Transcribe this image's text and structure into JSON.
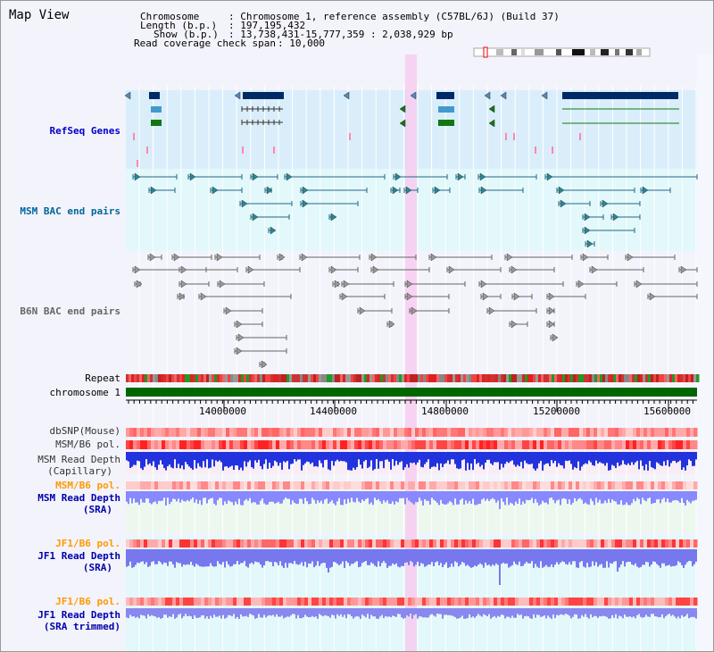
{
  "title": "Map View",
  "header": {
    "chromosome_key": "Chromosome",
    "chromosome_val": ": Chromosome 1, reference assembly (C57BL/6J) (Build 37)",
    "length_key": "Length (b.p.)",
    "length_val": ": 197,195,432",
    "show_key": "Show (b.p.)",
    "show_val": ": 13,738,431-15,777,359 : 2,038,929 bp",
    "coverage_key": "Read coverage check span",
    "coverage_val": ": 10,000"
  },
  "tracks": {
    "refseq": "RefSeq Genes",
    "msm_bac": "MSM BAC end pairs",
    "b6n_bac": "B6N BAC end pairs",
    "repeat": "Repeat",
    "chromosome": "chromosome 1",
    "dbsnp": "dbSNP(Mouse)",
    "msm_b6_pol": "MSM/B6 pol.",
    "msm_read_depth_cap_1": "MSM Read Depth",
    "msm_read_depth_cap_2": "(Capillary)",
    "msm_b6_pol_2": "MSM/B6 pol.",
    "msm_read_depth_sra_1": "MSM Read Depth",
    "msm_read_depth_sra_2": "(SRA)",
    "jf1_b6_pol": "JF1/B6 pol.",
    "jf1_read_depth_1": "JF1 Read Depth",
    "jf1_read_depth_2": "(SRA)",
    "jf1_b6_pol_2": "JF1/B6 pol.",
    "jf1_trimmed_1": "JF1 Read Depth",
    "jf1_trimmed_2": "(SRA trimmed)"
  },
  "axis": {
    "ticks": [
      "14000000",
      "14400000",
      "14800000",
      "15200000",
      "15600000"
    ]
  },
  "colors": {
    "refseq_label": "#0000cc",
    "msm_label": "#006699",
    "b6n_label": "#666666",
    "orange_label": "#ff9900",
    "blue_label": "#0000aa",
    "chromosome_bar": "#006600",
    "highlight": "#f7cdf0"
  }
}
